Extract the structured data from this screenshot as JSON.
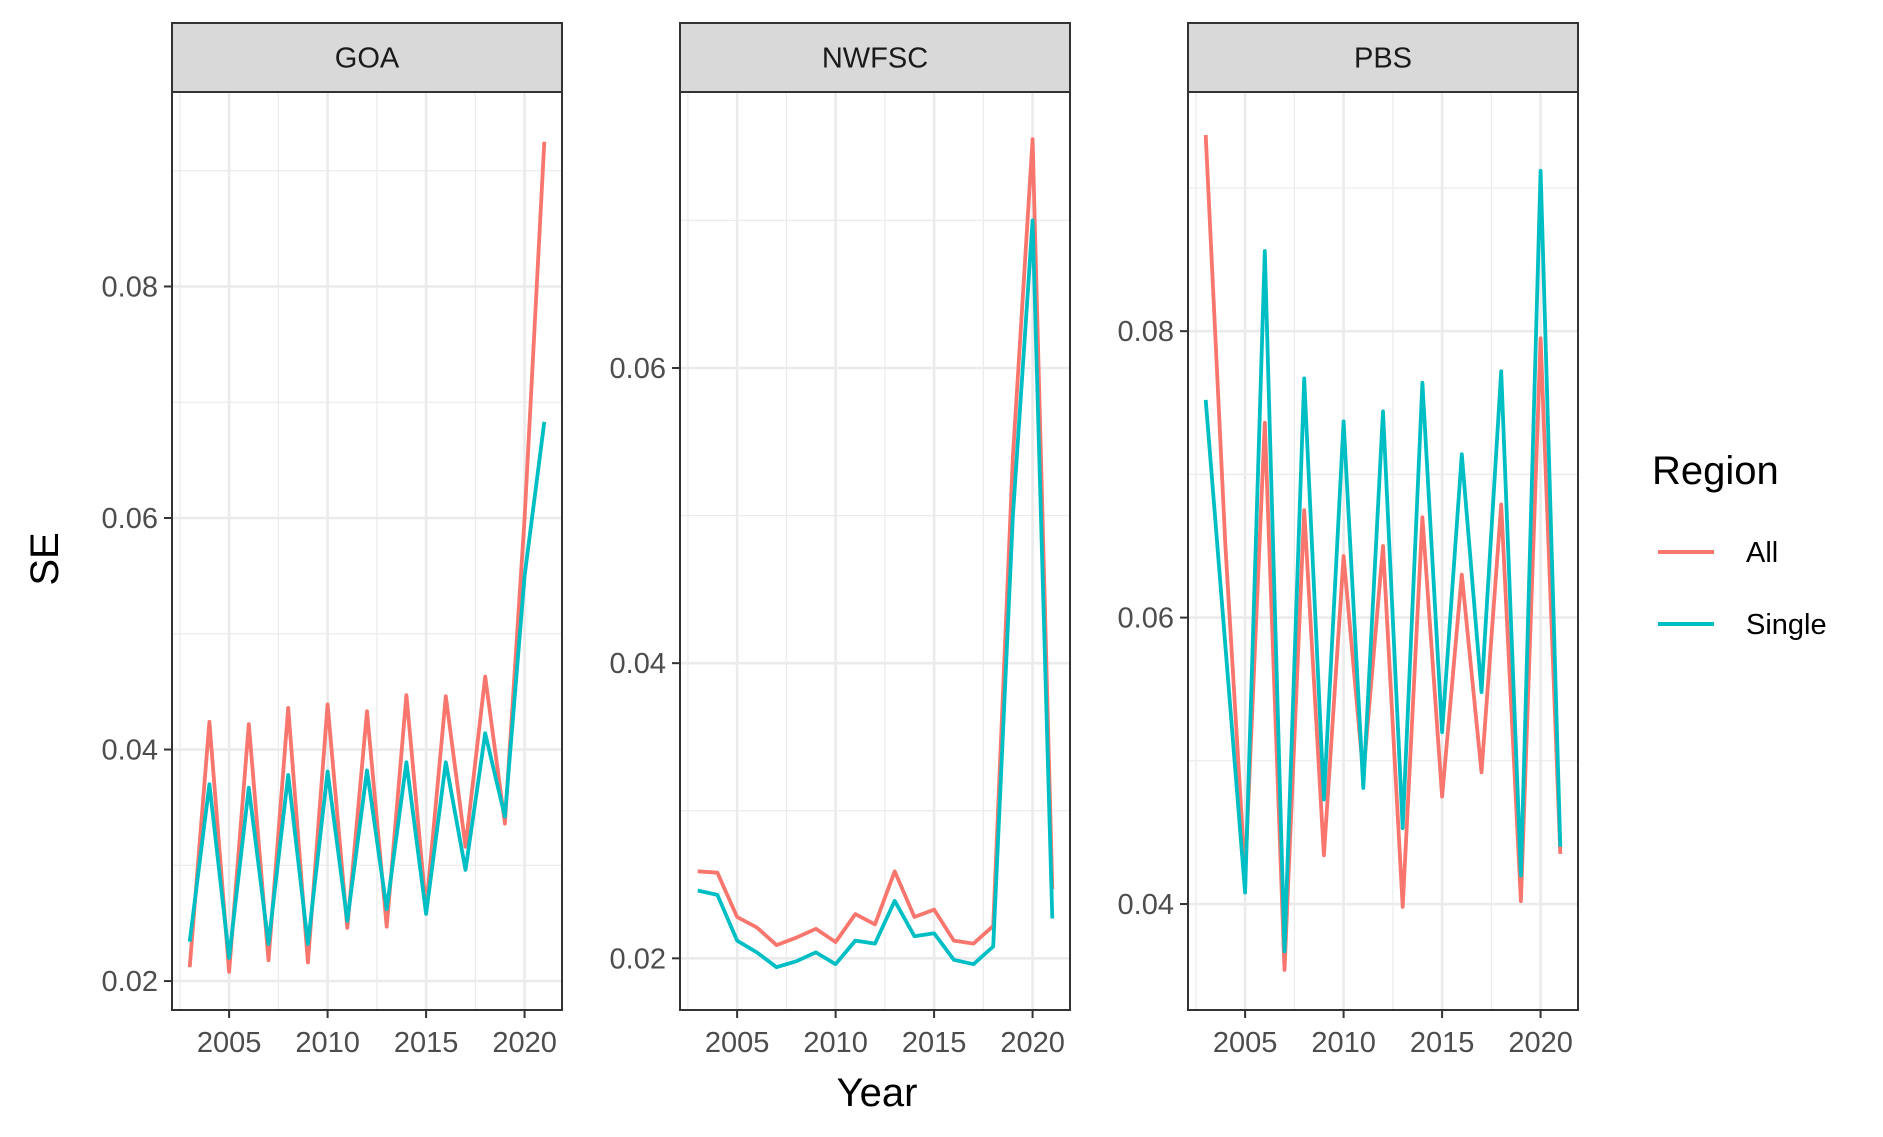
{
  "chart_data": {
    "type": "line",
    "xlabel": "Year",
    "ylabel": "SE",
    "legend": {
      "title": "Region",
      "position": "right"
    },
    "series_styles": [
      {
        "name": "All",
        "color": "#F8766D"
      },
      {
        "name": "Single",
        "color": "#00BFC4"
      }
    ],
    "grid": true,
    "x_ticks": [
      2005,
      2010,
      2015,
      2020
    ],
    "facets": [
      {
        "label": "GOA",
        "ylim": [
          0.0175,
          0.0968
        ],
        "y_ticks": [
          "0.02",
          "0.04",
          "0.06",
          "0.08"
        ],
        "y_tick_values": [
          0.02,
          0.04,
          0.06,
          0.08
        ],
        "x": [
          2003,
          2004,
          2005,
          2006,
          2007,
          2008,
          2009,
          2010,
          2011,
          2012,
          2013,
          2014,
          2015,
          2016,
          2017,
          2018,
          2019,
          2020,
          2021
        ],
        "series": [
          {
            "name": "All",
            "values": [
              0.0212,
              0.0424,
              0.0208,
              0.0422,
              0.0218,
              0.0436,
              0.0216,
              0.0439,
              0.0246,
              0.0433,
              0.0247,
              0.0447,
              0.0262,
              0.0446,
              0.0316,
              0.0463,
              0.0336,
              0.06,
              0.0925
            ]
          },
          {
            "name": "Single",
            "values": [
              0.0234,
              0.037,
              0.022,
              0.0367,
              0.0232,
              0.0378,
              0.0232,
              0.0381,
              0.0252,
              0.0382,
              0.0262,
              0.0389,
              0.0258,
              0.0389,
              0.0296,
              0.0414,
              0.0342,
              0.055,
              0.0683
            ]
          }
        ]
      },
      {
        "label": "NWFSC",
        "ylim": [
          0.0165,
          0.0787
        ],
        "y_ticks": [
          "0.02",
          "0.04",
          "0.06"
        ],
        "y_tick_values": [
          0.02,
          0.04,
          0.06
        ],
        "x": [
          2003,
          2004,
          2005,
          2006,
          2007,
          2008,
          2009,
          2010,
          2011,
          2012,
          2013,
          2014,
          2015,
          2016,
          2017,
          2018,
          2019,
          2020,
          2021
        ],
        "series": [
          {
            "name": "All",
            "values": [
              0.0259,
              0.0258,
              0.0228,
              0.0221,
              0.0209,
              0.0214,
              0.022,
              0.0211,
              0.023,
              0.0223,
              0.0259,
              0.0228,
              0.0233,
              0.0212,
              0.021,
              0.0222,
              0.054,
              0.0755,
              0.0247
            ]
          },
          {
            "name": "Single",
            "values": [
              0.0246,
              0.0243,
              0.0212,
              0.0204,
              0.0194,
              0.0198,
              0.0204,
              0.0196,
              0.0212,
              0.021,
              0.0239,
              0.0215,
              0.0217,
              0.0199,
              0.0196,
              0.0208,
              0.05,
              0.07,
              0.0227
            ]
          }
        ]
      },
      {
        "label": "PBS",
        "ylim": [
          0.0326,
          0.0967
        ],
        "y_ticks": [
          "0.04",
          "0.06",
          "0.08"
        ],
        "y_tick_values": [
          0.04,
          0.06,
          0.08
        ],
        "x": [
          2003,
          2004,
          2005,
          2006,
          2007,
          2008,
          2009,
          2010,
          2011,
          2012,
          2013,
          2014,
          2015,
          2016,
          2017,
          2018,
          2019,
          2020,
          2021
        ],
        "series": [
          {
            "name": "All",
            "values": [
              0.0937,
              0.065,
              0.042,
              0.0736,
              0.0354,
              0.0675,
              0.0434,
              0.0643,
              0.049,
              0.065,
              0.0398,
              0.067,
              0.0475,
              0.063,
              0.0492,
              0.0679,
              0.0402,
              0.0795,
              0.0435
            ]
          },
          {
            "name": "Single",
            "values": [
              0.0752,
              0.058,
              0.0408,
              0.0856,
              0.0367,
              0.0767,
              0.0473,
              0.0737,
              0.0481,
              0.0744,
              0.0453,
              0.0764,
              0.052,
              0.0714,
              0.0548,
              0.0772,
              0.042,
              0.0912,
              0.044
            ]
          }
        ]
      }
    ]
  }
}
